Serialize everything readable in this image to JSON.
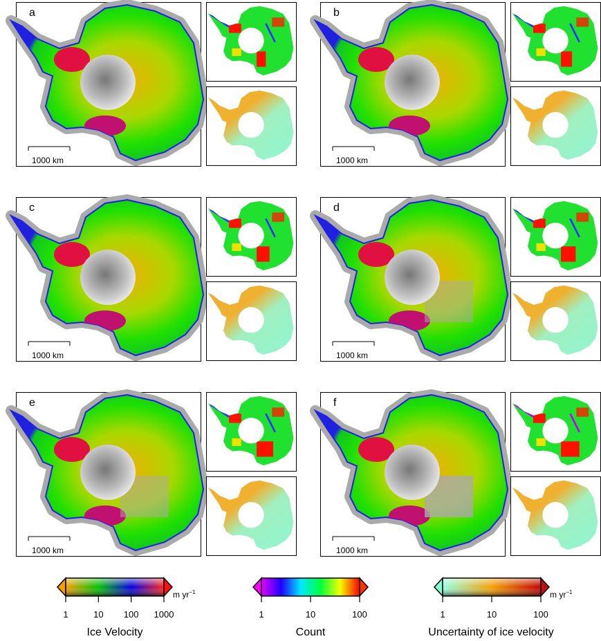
{
  "panels": [
    {
      "letter": "a",
      "scale_label": "1000 km"
    },
    {
      "letter": "b",
      "scale_label": "1000 km"
    },
    {
      "letter": "c",
      "scale_label": "1000 km"
    },
    {
      "letter": "d",
      "scale_label": "1000 km"
    },
    {
      "letter": "e",
      "scale_label": "1000 km"
    },
    {
      "letter": "f",
      "scale_label": "1000 km"
    }
  ],
  "colorbars": [
    {
      "title": "Ice Velocity",
      "unit": "m yr",
      "unit_exp": "−1",
      "ticks": [
        "1",
        "10",
        "100",
        "1000"
      ],
      "scale": "log",
      "colors": [
        "#f5a000",
        "#00c000",
        "#0000e0",
        "#ff2020"
      ],
      "under_color": "#f5a000",
      "over_color": "#ff1010"
    },
    {
      "title": "Count",
      "unit": "",
      "unit_exp": "",
      "ticks": [
        "1",
        "10",
        "100"
      ],
      "scale": "log",
      "colors": [
        "#e000ff",
        "#2000ff",
        "#00e8ff",
        "#00ff40",
        "#f0ff00",
        "#ff0000"
      ],
      "under_color": "#ff00ff",
      "over_color": "#ff3000"
    },
    {
      "title": "Uncertainty of ice velocity",
      "unit": "m yr",
      "unit_exp": "−1",
      "ticks": [
        "1",
        "10",
        "100"
      ],
      "scale": "log",
      "colors": [
        "#90ffe0",
        "#f5a000",
        "#c00000"
      ],
      "under_color": "#80ffd0",
      "over_color": "#c01010"
    }
  ]
}
